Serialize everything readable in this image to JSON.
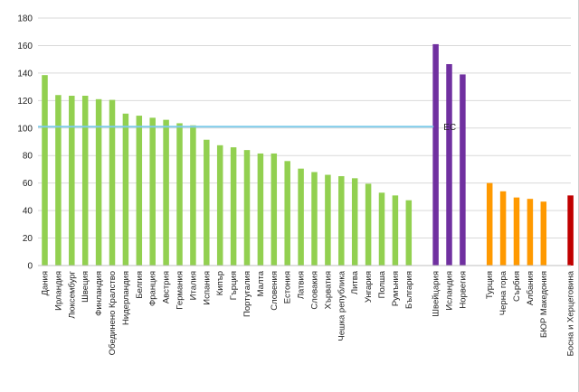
{
  "chart_data": {
    "type": "bar",
    "title": "",
    "xlabel": "",
    "ylabel": "",
    "ylim": [
      0,
      180
    ],
    "yticks": [
      0,
      20,
      40,
      60,
      80,
      100,
      120,
      140,
      160,
      180
    ],
    "grid": "horizontal",
    "reference_line": {
      "label": "ЕС",
      "value": 101,
      "color": "#7ecbea",
      "from": "Дания",
      "to": "България"
    },
    "groups": [
      {
        "color": "#92d050",
        "categories": [
          "Дания",
          "Ирландия",
          "Люксембург",
          "Швеция",
          "Финландия",
          "Обединено Кралство",
          "Нидерландия",
          "Белгия",
          "Франция",
          "Австрия",
          "Германия",
          "Италия",
          "Испания",
          "Кипър",
          "Гърция",
          "Португалия",
          "Малта",
          "Словения",
          "Естония",
          "Латвия",
          "Словакия",
          "Хърватия",
          "Чешка република",
          "Литва",
          "Унгария",
          "Полша",
          "Румъния",
          "България"
        ],
        "values": [
          138.5,
          124,
          123.5,
          123.5,
          121,
          120.5,
          110.5,
          109,
          107.5,
          106,
          103.5,
          102,
          91.5,
          87.5,
          86,
          84,
          81.5,
          81.5,
          76,
          70.5,
          68,
          66,
          65,
          63.5,
          59.5,
          53,
          51,
          47.5
        ]
      },
      {
        "color": "#7030a0",
        "categories": [
          "Швейцария",
          "Исландия",
          "Норвегия"
        ],
        "values": [
          161,
          146.5,
          139
        ]
      },
      {
        "color": "#ff9900",
        "categories": [
          "Турция",
          "Черна гора",
          "Сърбия",
          "Албания",
          "БЮР Македония"
        ],
        "values": [
          60,
          54,
          49.5,
          48.5,
          46.5
        ]
      },
      {
        "color": "#c00000",
        "categories": [
          "Босна и Херцеговина"
        ],
        "values": [
          51
        ]
      }
    ]
  }
}
